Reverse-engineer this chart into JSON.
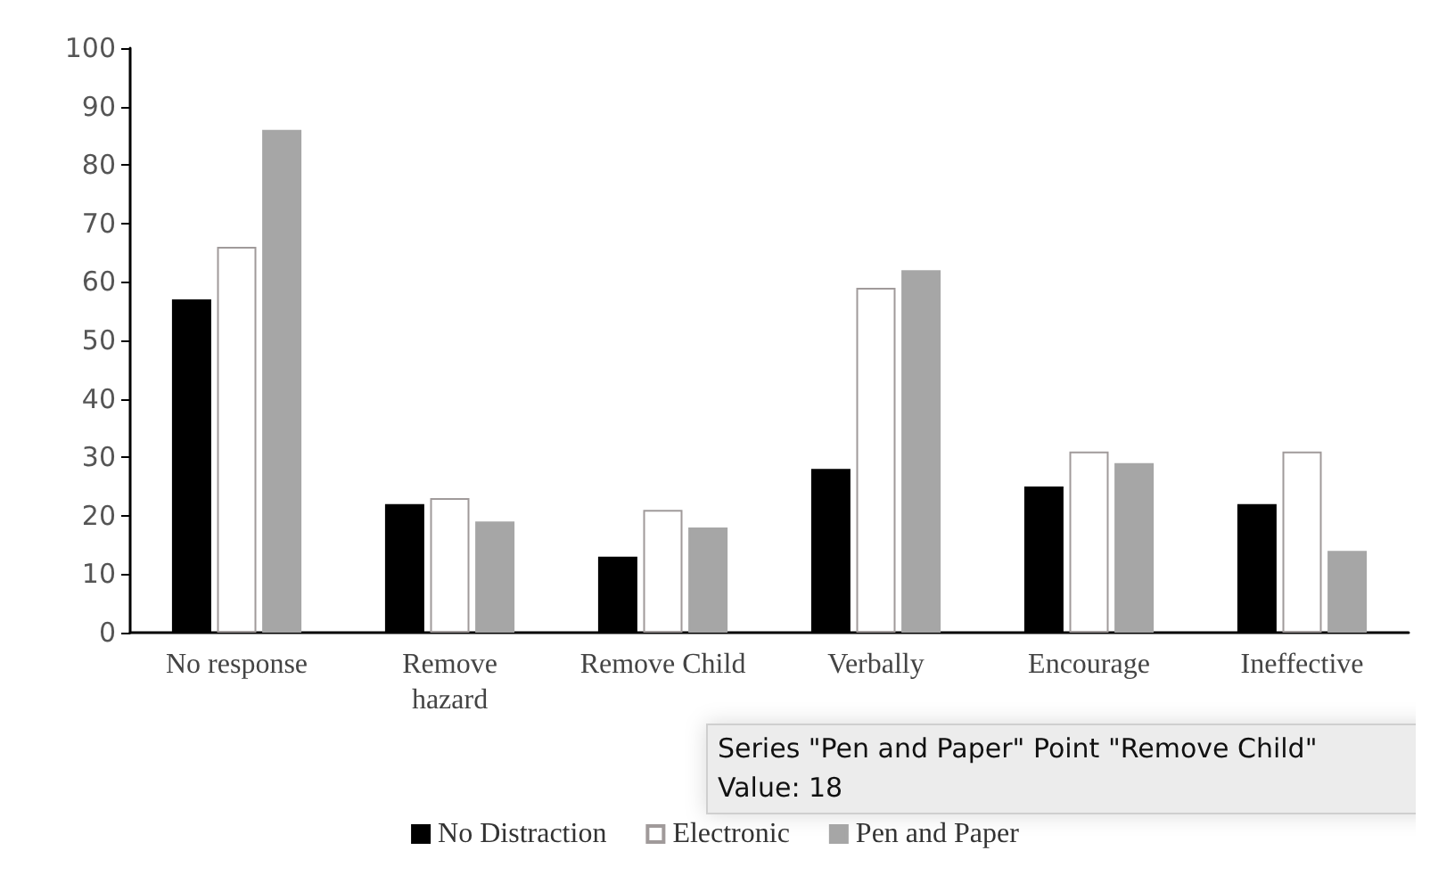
{
  "chart_data": {
    "type": "bar",
    "categories": [
      "No response",
      "Remove\nhazard",
      "Remove Child",
      "Verbally",
      "Encourage",
      "Ineffective"
    ],
    "series": [
      {
        "name": "No Distraction",
        "color": "#000000",
        "values": [
          57,
          22,
          13,
          28,
          25,
          22
        ]
      },
      {
        "name": "Electronic",
        "color": "#ffffff",
        "values": [
          66,
          23,
          21,
          59,
          31,
          31
        ]
      },
      {
        "name": "Pen and Paper",
        "color": "#a6a6a6",
        "values": [
          86,
          19,
          18,
          62,
          29,
          14
        ]
      }
    ],
    "ylim": [
      0,
      100
    ],
    "yticks": [
      0,
      10,
      20,
      30,
      40,
      50,
      60,
      70,
      80,
      90,
      100
    ],
    "grid": false,
    "legend": "bottom",
    "annotations": [
      "Series \"Pen and Paper\" Point \"Remove Child\"",
      "Value: 18"
    ]
  }
}
